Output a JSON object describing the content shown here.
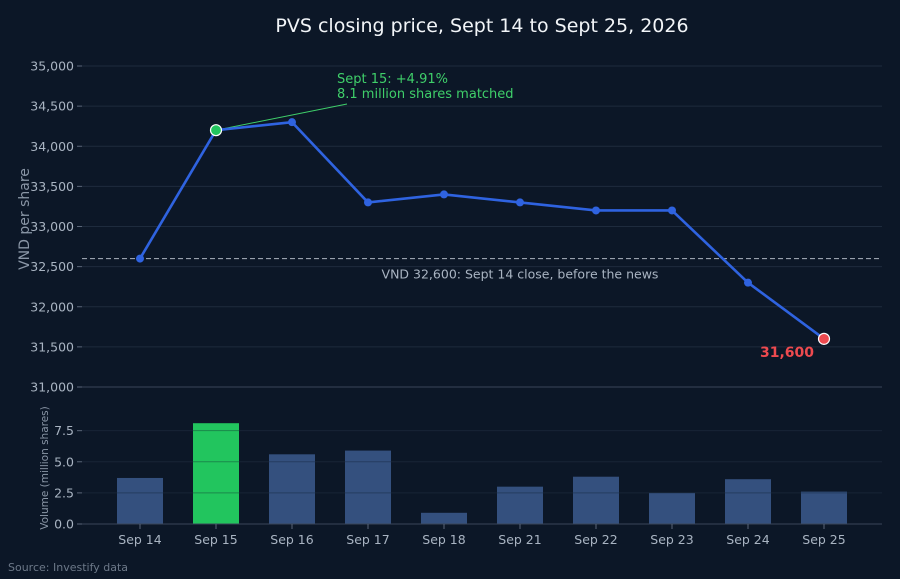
{
  "source": "Source: Investify data",
  "colors": {
    "background": "#0c1727",
    "line": "#2f63e0",
    "grid": "#1e2b3d",
    "highlight_green": "#22c55e",
    "end_red": "#ee4a4f",
    "volume_bar": "#34507e"
  },
  "chart_data": [
    {
      "type": "line",
      "title": "PVS closing price, Sept 14 to Sept 25, 2026",
      "ylabel": "VND per share",
      "categories": [
        "Sep 14",
        "Sep 15",
        "Sep 16",
        "Sep 17",
        "Sep 18",
        "Sep 21",
        "Sep 22",
        "Sep 23",
        "Sep 24",
        "Sep 25"
      ],
      "values": [
        32600,
        34200,
        34300,
        33300,
        33400,
        33300,
        33200,
        33200,
        32300,
        31600
      ],
      "ylim": [
        31000,
        35000
      ],
      "yticks": [
        "31,000",
        "31,500",
        "32,000",
        "32,500",
        "33,000",
        "33,500",
        "34,000",
        "34,500",
        "35,000"
      ],
      "grid": true,
      "reference_line": {
        "value": 32600,
        "label": "VND 32,600: Sept 14 close, before the news"
      },
      "highlight_point": {
        "category": "Sep 15",
        "annotation_lines": [
          "Sept 15: +4.91%",
          "8.1 million shares matched"
        ]
      },
      "end_point": {
        "category": "Sep 25",
        "label": "31,600"
      }
    },
    {
      "type": "bar",
      "ylabel": "Volume (million shares)",
      "categories": [
        "Sep 14",
        "Sep 15",
        "Sep 16",
        "Sep 17",
        "Sep 18",
        "Sep 21",
        "Sep 22",
        "Sep 23",
        "Sep 24",
        "Sep 25"
      ],
      "values": [
        3.7,
        8.1,
        5.6,
        5.9,
        0.9,
        3.0,
        3.8,
        2.5,
        3.6,
        2.6
      ],
      "highlight_category": "Sep 15",
      "ylim": [
        0,
        9.0
      ],
      "yticks": [
        "0.0",
        "2.5",
        "5.0",
        "7.5"
      ],
      "grid": true
    }
  ]
}
